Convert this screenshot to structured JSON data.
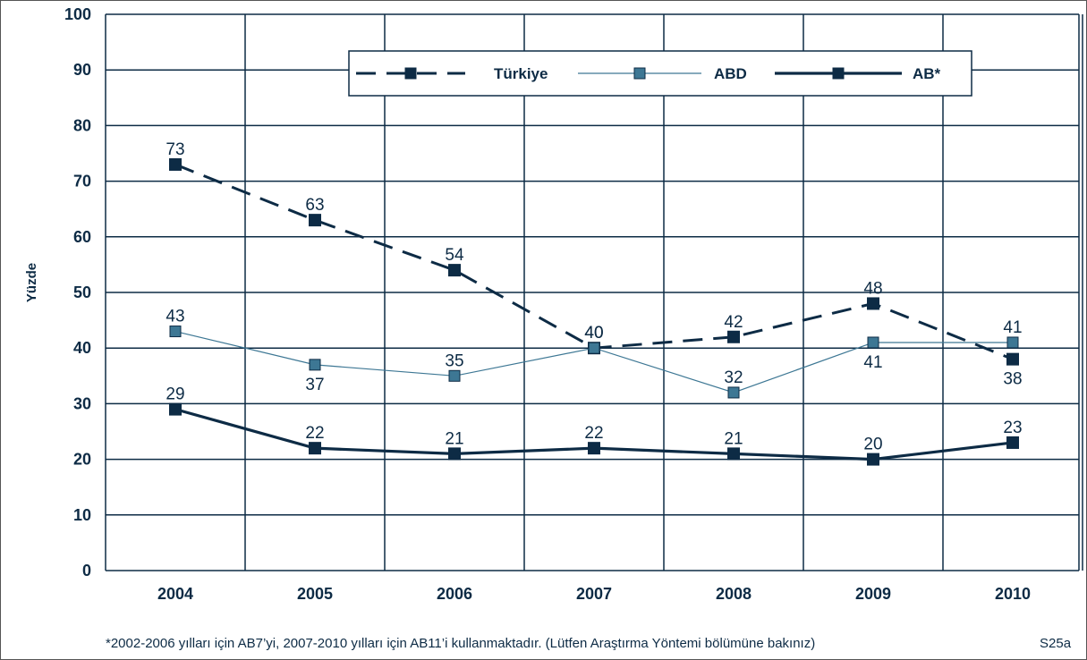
{
  "chart_data": {
    "type": "line",
    "ylabel": "Yüzde",
    "xlabel": "",
    "ylim": [
      0,
      100
    ],
    "yticks": [
      0,
      10,
      20,
      30,
      40,
      50,
      60,
      70,
      80,
      90,
      100
    ],
    "categories": [
      "2004",
      "2005",
      "2006",
      "2007",
      "2008",
      "2009",
      "2010"
    ],
    "grid": true,
    "legend_position": "top-right",
    "series": [
      {
        "name": "Türkiye",
        "values": [
          73,
          63,
          54,
          40,
          42,
          48,
          38
        ],
        "color": "#0d2b45",
        "style": "dashed"
      },
      {
        "name": "ABD",
        "values": [
          43,
          37,
          35,
          40,
          32,
          41,
          41
        ],
        "color": "#3d7794",
        "style": "thin"
      },
      {
        "name": "AB*",
        "values": [
          29,
          22,
          21,
          22,
          21,
          20,
          23
        ],
        "color": "#0d2b45",
        "style": "thick"
      }
    ]
  },
  "footnote": "*2002-2006 yılları için AB7’yi, 2007-2010 yılları için AB11’i kullanmaktadır. (Lütfen Araştırma Yöntemi bölümüne bakınız)",
  "source_code": "S25a"
}
